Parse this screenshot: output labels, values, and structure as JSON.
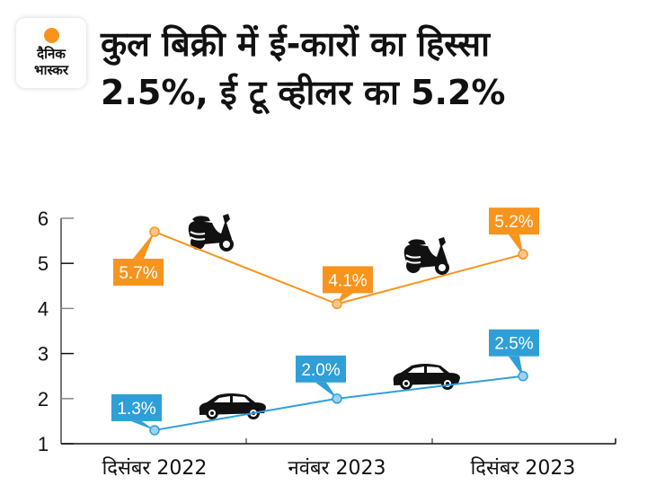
{
  "brand": {
    "line1": "दैनिक",
    "line2": "भास्कर",
    "accent": "#f7941d"
  },
  "header": {
    "title_line1": "कुल बिक्री में ई-कारों का हिस्सा",
    "title_line2": "2.5%, ई टू व्हीलर का 5.2%"
  },
  "chart_data": {
    "type": "line",
    "title": "कुल बिक्री में ई-कारों का हिस्सा 2.5%, ई टू व्हीलर का 5.2%",
    "categories": [
      "दिसंबर 2022",
      "नवंबर 2023",
      "दिसंबर 2023"
    ],
    "xlabel": "",
    "ylabel": "",
    "ylim": [
      1,
      6
    ],
    "yticks": [
      1,
      2,
      3,
      4,
      5,
      6
    ],
    "grid": false,
    "legend": "none",
    "series": [
      {
        "name": "ई टू व्हीलर",
        "icon": "scooter-icon",
        "color": "#f7941d",
        "values": [
          5.7,
          4.1,
          5.2
        ],
        "labels": [
          "5.7%",
          "4.1%",
          "5.2%"
        ]
      },
      {
        "name": "ई-कार",
        "icon": "car-icon",
        "color": "#2f9fd8",
        "values": [
          1.3,
          2.0,
          2.5
        ],
        "labels": [
          "1.3%",
          "2.0%",
          "2.5%"
        ]
      }
    ]
  }
}
